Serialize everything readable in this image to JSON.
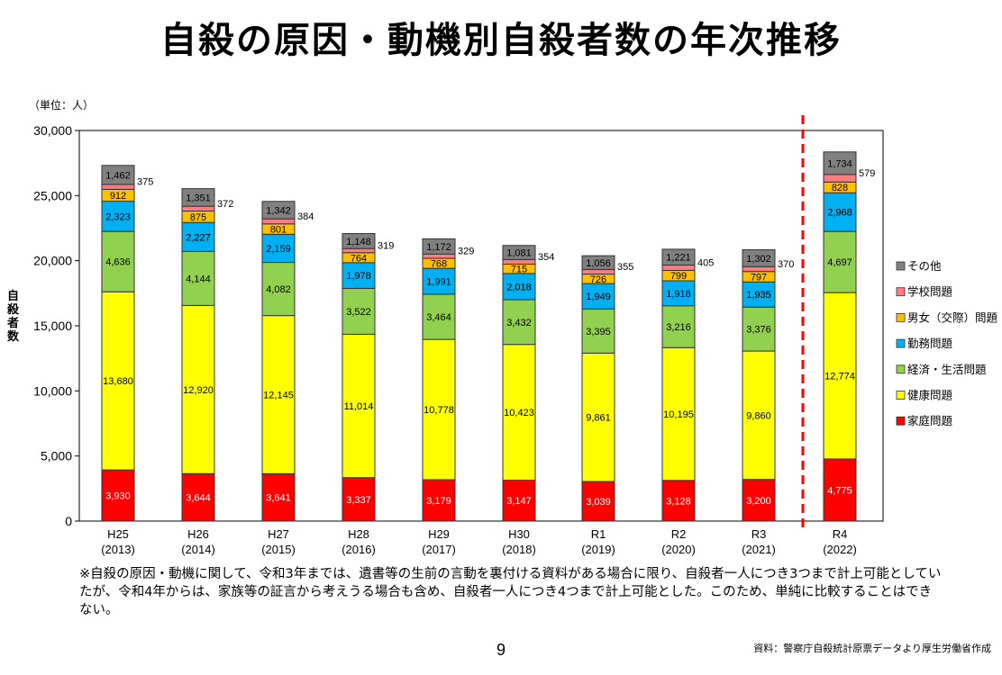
{
  "chart_data": {
    "type": "bar",
    "stacked": true,
    "title": "自殺の原因・動機別自殺者数の年次推移",
    "unit_label": "（単位：人）",
    "ylabel": "自殺者数",
    "ylim": [
      0,
      30000
    ],
    "yticks": [
      "0",
      "5,000",
      "10,000",
      "15,000",
      "20,000",
      "25,000",
      "30,000"
    ],
    "ytick_values": [
      0,
      5000,
      10000,
      15000,
      20000,
      25000,
      30000
    ],
    "grid": false,
    "legend_position": "right",
    "categories": [
      {
        "label": "H25",
        "year": "(2013)"
      },
      {
        "label": "H26",
        "year": "(2014)"
      },
      {
        "label": "H27",
        "year": "(2015)"
      },
      {
        "label": "H28",
        "year": "(2016)"
      },
      {
        "label": "H29",
        "year": "(2017)"
      },
      {
        "label": "H30",
        "year": "(2018)"
      },
      {
        "label": "R1",
        "year": "(2019)"
      },
      {
        "label": "R2",
        "year": "(2020)"
      },
      {
        "label": "R3",
        "year": "(2021)"
      },
      {
        "label": "R4",
        "year": "(2022)"
      }
    ],
    "series": [
      {
        "name": "家庭問題",
        "color": "#ff0000",
        "values": [
          3930,
          3644,
          3641,
          3337,
          3179,
          3147,
          3039,
          3128,
          3200,
          4775
        ],
        "labels": [
          "3,930",
          "3,644",
          "3,641",
          "3,337",
          "3,179",
          "3,147",
          "3,039",
          "3,128",
          "3,200",
          "4,775"
        ]
      },
      {
        "name": "健康問題",
        "color": "#ffff00",
        "values": [
          13680,
          12920,
          12145,
          11014,
          10778,
          10423,
          9861,
          10195,
          9860,
          12774
        ],
        "labels": [
          "13,680",
          "12,920",
          "12,145",
          "11,014",
          "10,778",
          "10,423",
          "9,861",
          "10,195",
          "9,860",
          "12,774"
        ]
      },
      {
        "name": "経済・生活問題",
        "color": "#92d050",
        "values": [
          4636,
          4144,
          4082,
          3522,
          3464,
          3432,
          3395,
          3216,
          3376,
          4697
        ],
        "labels": [
          "4,636",
          "4,144",
          "4,082",
          "3,522",
          "3,464",
          "3,432",
          "3,395",
          "3,216",
          "3,376",
          "4,697"
        ]
      },
      {
        "name": "勤務問題",
        "color": "#00b0f0",
        "values": [
          2323,
          2227,
          2159,
          1978,
          1991,
          2018,
          1949,
          1918,
          1935,
          2968
        ],
        "labels": [
          "2,323",
          "2,227",
          "2,159",
          "1,978",
          "1,991",
          "2,018",
          "1,949",
          "1,918",
          "1,935",
          "2,968"
        ]
      },
      {
        "name": "男女（交際）問題",
        "color": "#ffc000",
        "values": [
          912,
          875,
          801,
          764,
          768,
          715,
          726,
          799,
          797,
          828
        ],
        "labels": [
          "912",
          "875",
          "801",
          "764",
          "768",
          "715",
          "726",
          "799",
          "797",
          "828"
        ]
      },
      {
        "name": "学校問題",
        "color": "#ff7c80",
        "values": [
          375,
          372,
          384,
          319,
          329,
          354,
          355,
          405,
          370,
          579
        ],
        "labels": [
          "375",
          "372",
          "384",
          "319",
          "329",
          "354",
          "355",
          "405",
          "370",
          "579"
        ]
      },
      {
        "name": "その他",
        "color": "#808080",
        "values": [
          1462,
          1351,
          1342,
          1148,
          1172,
          1081,
          1056,
          1221,
          1302,
          1734
        ],
        "labels": [
          "1,462",
          "1,351",
          "1,342",
          "1,148",
          "1,172",
          "1,081",
          "1,056",
          "1,221",
          "1,302",
          "1,734"
        ]
      }
    ],
    "divider": {
      "between": [
        "R3",
        "R4"
      ],
      "color": "#ff0000",
      "style": "dashed"
    }
  },
  "note": "※自殺の原因・動機に関して、令和3年までは、遺書等の生前の言動を裏付ける資料がある場合に限り、自殺者一人につき3つまで計上可能としていたが、令和4年からは、家族等の証言から考えうる場合も含め、自殺者一人につき4つまで計上可能とした。このため、単純に比較することはできない。",
  "page_number": "9",
  "source": "資料：警察庁自殺統計原票データより厚生労働省作成"
}
